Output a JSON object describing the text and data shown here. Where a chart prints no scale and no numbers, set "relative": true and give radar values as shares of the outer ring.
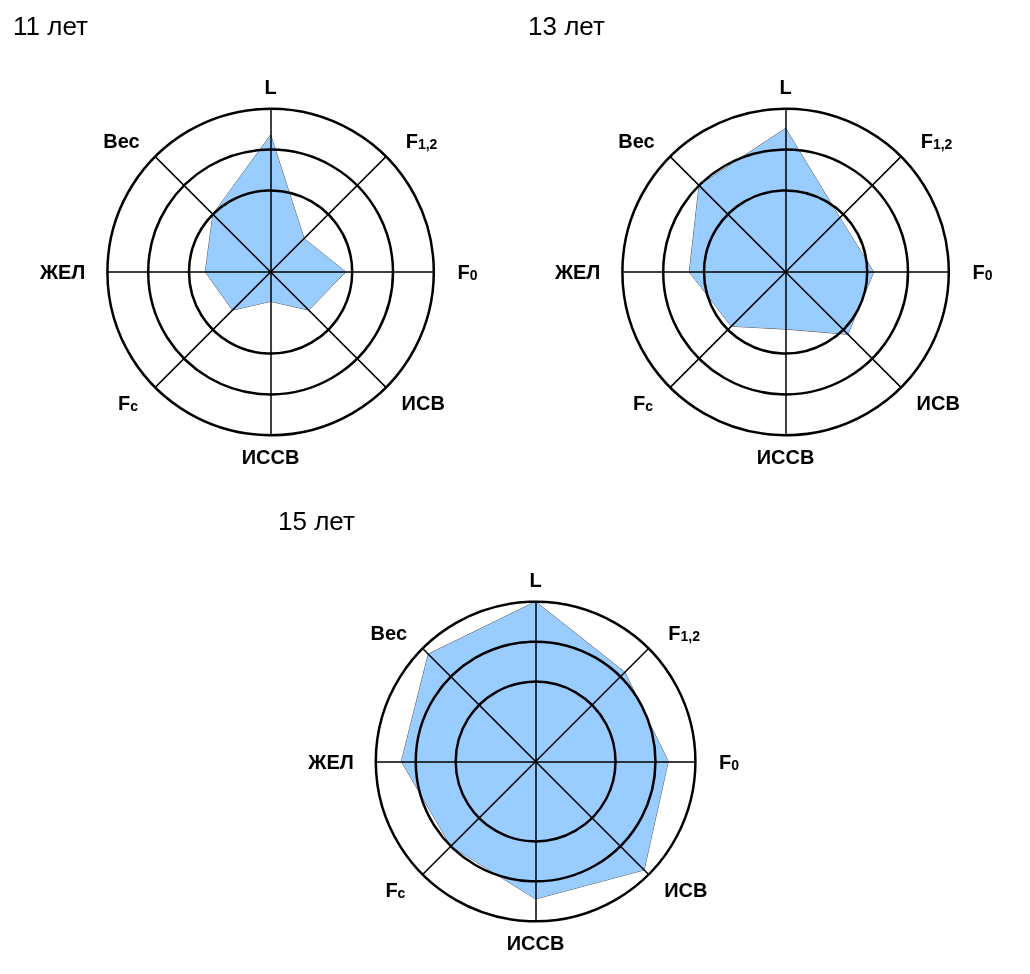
{
  "chart_data": [
    {
      "type": "radar",
      "title": "11 лет",
      "relative": true,
      "categories": [
        "L",
        "F$_{1,2}$",
        "F$_{0}$",
        "ИСВ",
        "ИССВ",
        "F$_{c}$",
        "ЖЕЛ",
        "Вес"
      ],
      "series": [
        {
          "color": "#99ccff",
          "values": [
            0.84,
            0.29,
            0.46,
            0.33,
            0.18,
            0.33,
            0.4,
            0.5
          ]
        }
      ]
    },
    {
      "type": "radar",
      "title": "13 лет",
      "relative": true,
      "categories": [
        "L",
        "F$_{1,2}$",
        "F$_{0}$",
        "ИСВ",
        "ИССВ",
        "F$_{c}$",
        "ЖЕЛ",
        "Вес"
      ],
      "series": [
        {
          "color": "#99ccff",
          "values": [
            0.88,
            0.47,
            0.54,
            0.54,
            0.35,
            0.47,
            0.59,
            0.75
          ]
        }
      ]
    },
    {
      "type": "radar",
      "title": "15 лет",
      "relative": true,
      "categories": [
        "L",
        "F$_{1,2}$",
        "F$_{0}$",
        "ИСВ",
        "ИССВ",
        "F$_{c}$",
        "ЖЕЛ",
        "Вес"
      ],
      "series": [
        {
          "color": "#99ccff",
          "values": [
            1.0,
            0.79,
            0.83,
            0.96,
            0.86,
            0.75,
            0.84,
            0.95
          ]
        }
      ]
    }
  ]
}
